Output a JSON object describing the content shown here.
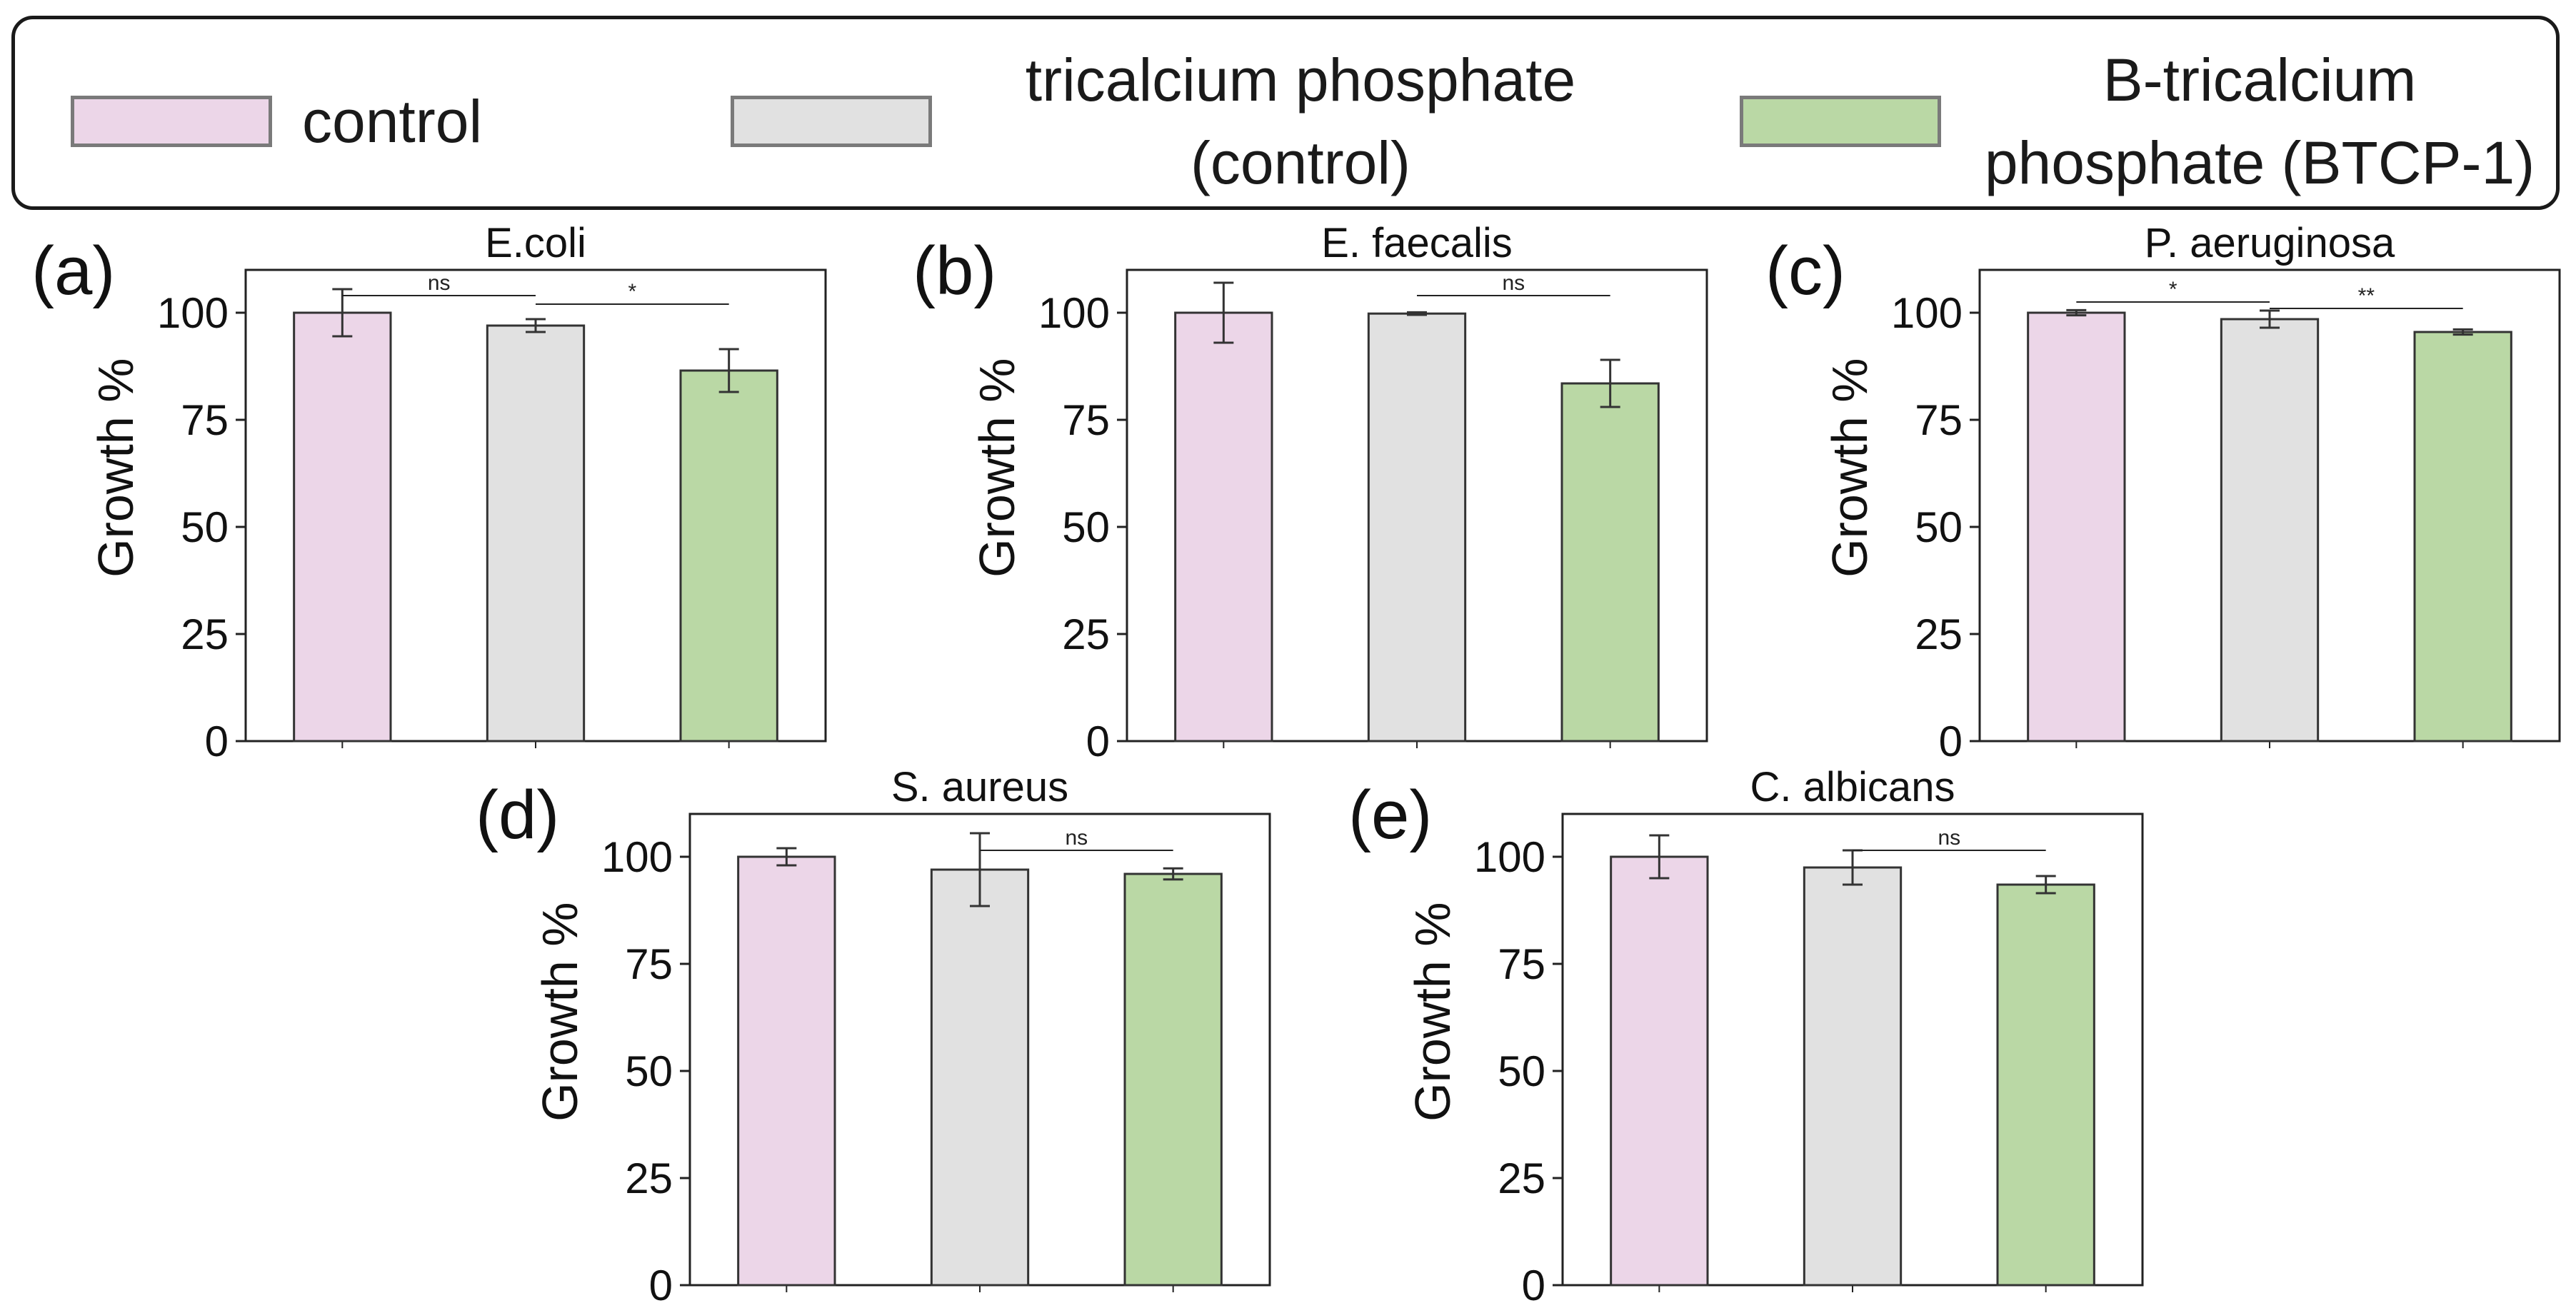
{
  "legend": {
    "items": [
      {
        "label": "control",
        "color": "#ecd6e8"
      },
      {
        "label": "tricalcium phosphate\n(control)",
        "color": "#e1e1e1"
      },
      {
        "label": "B-tricalcium\nphosphate (BTCP-1)",
        "color": "#bad8a5"
      }
    ]
  },
  "colors": {
    "axis": "#222222",
    "bar_edge": "#333333",
    "error": "#333333"
  },
  "chart_data": [
    {
      "type": "bar",
      "panel": "(a)",
      "title": "E.coli",
      "ylabel": "Growth %",
      "ylim": [
        0,
        110
      ],
      "yticks": [
        0,
        25,
        50,
        75,
        100
      ],
      "categories": [
        "control",
        "tricalcium phosphate (control)",
        "B-tricalcium phosphate (BTCP-1)"
      ],
      "values": [
        100,
        97,
        86.5
      ],
      "errors": [
        5.5,
        1.5,
        5
      ],
      "significance": [
        {
          "from": 0,
          "to": 1,
          "label": "ns",
          "y": 104
        },
        {
          "from": 1,
          "to": 2,
          "label": "*",
          "y": 102
        }
      ]
    },
    {
      "type": "bar",
      "panel": "(b)",
      "title": "E. faecalis",
      "ylabel": "Growth %",
      "ylim": [
        0,
        110
      ],
      "yticks": [
        0,
        25,
        50,
        75,
        100
      ],
      "categories": [
        "control",
        "tricalcium phosphate (control)",
        "B-tricalcium phosphate (BTCP-1)"
      ],
      "values": [
        100,
        99.8,
        83.5
      ],
      "errors": [
        7,
        0.3,
        5.5
      ],
      "significance": [
        {
          "from": 1,
          "to": 2,
          "label": "ns",
          "y": 104
        }
      ]
    },
    {
      "type": "bar",
      "panel": "(c)",
      "title": "P. aeruginosa",
      "ylabel": "Growth %",
      "ylim": [
        0,
        110
      ],
      "yticks": [
        0,
        25,
        50,
        75,
        100
      ],
      "categories": [
        "control",
        "tricalcium phosphate (control)",
        "B-tricalcium phosphate (BTCP-1)"
      ],
      "values": [
        100,
        98.5,
        95.5
      ],
      "errors": [
        0.6,
        2,
        0.6
      ],
      "significance": [
        {
          "from": 0,
          "to": 1,
          "label": "*",
          "y": 102.5
        },
        {
          "from": 1,
          "to": 2,
          "label": "**",
          "y": 101
        }
      ]
    },
    {
      "type": "bar",
      "panel": "(d)",
      "title": "S. aureus",
      "ylabel": "Growth %",
      "ylim": [
        0,
        110
      ],
      "yticks": [
        0,
        25,
        50,
        75,
        100
      ],
      "categories": [
        "control",
        "tricalcium phosphate (control)",
        "B-tricalcium phosphate (BTCP-1)"
      ],
      "values": [
        100,
        97,
        96
      ],
      "errors": [
        2,
        8.5,
        1.3
      ],
      "significance": [
        {
          "from": 1,
          "to": 2,
          "label": "ns",
          "y": 101.5
        }
      ]
    },
    {
      "type": "bar",
      "panel": "(e)",
      "title": "C. albicans",
      "ylabel": "Growth %",
      "ylim": [
        0,
        110
      ],
      "yticks": [
        0,
        25,
        50,
        75,
        100
      ],
      "categories": [
        "control",
        "tricalcium phosphate (control)",
        "B-tricalcium phosphate (BTCP-1)"
      ],
      "values": [
        100,
        97.5,
        93.5
      ],
      "errors": [
        5,
        4,
        2
      ],
      "significance": [
        {
          "from": 1,
          "to": 2,
          "label": "ns",
          "y": 101.5
        }
      ]
    }
  ]
}
